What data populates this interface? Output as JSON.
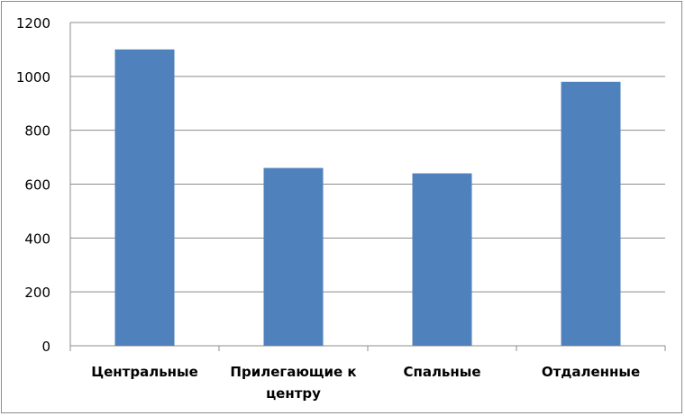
{
  "chart_data": {
    "type": "bar",
    "categories": [
      "Центральные",
      "Прилегающие к центру",
      "Спальные",
      "Отдаленные"
    ],
    "category_label_lines": [
      [
        "Центральные"
      ],
      [
        "Прилегающие к",
        "центру"
      ],
      [
        "Спальные"
      ],
      [
        "Отдаленные"
      ]
    ],
    "values": [
      1100,
      660,
      640,
      980
    ],
    "title": "",
    "xlabel": "",
    "ylabel": "",
    "ylim": [
      0,
      1200
    ],
    "yticks": [
      0,
      200,
      400,
      600,
      800,
      1000,
      1200
    ],
    "grid": true,
    "legend": "none",
    "bar_color": "#4f81bd",
    "grid_color": "#8c8c8c"
  }
}
